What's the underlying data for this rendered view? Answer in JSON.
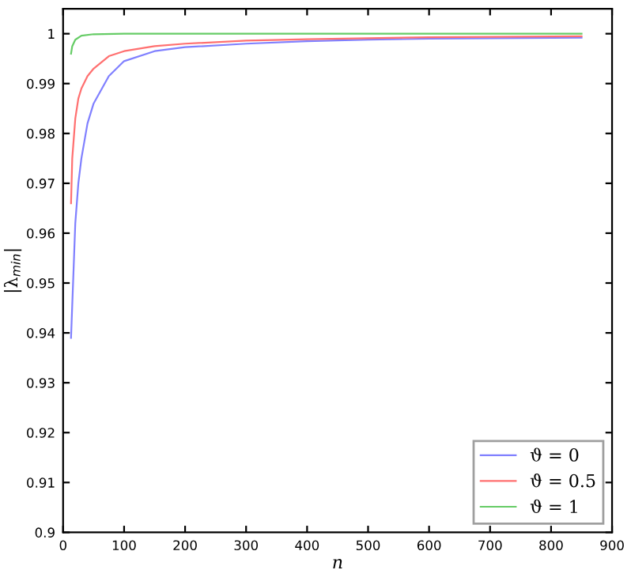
{
  "chart_data": {
    "type": "line",
    "xlabel": "n",
    "ylabel": "|λ$_{min}$|",
    "xlim": [
      0,
      900
    ],
    "xticks": [
      0,
      100,
      200,
      300,
      400,
      500,
      600,
      700,
      800,
      900
    ],
    "ylim": [
      0.9,
      1.005
    ],
    "yticks": [
      0.9,
      0.91,
      0.92,
      0.93,
      0.94,
      0.95,
      0.96,
      0.97,
      0.98,
      0.99,
      1
    ],
    "grid": false,
    "legend": "bottom right",
    "marker": "none",
    "line_style": "solid",
    "series": [
      {
        "name": "ϑ = 0",
        "color": "#8080ff",
        "x": [
          13,
          20,
          25,
          30,
          40,
          50,
          75,
          100,
          150,
          200,
          300,
          400,
          500,
          600,
          700,
          850
        ],
        "values": [
          0.939,
          0.962,
          0.97,
          0.975,
          0.982,
          0.986,
          0.9915,
          0.9945,
          0.9965,
          0.9973,
          0.998,
          0.9985,
          0.9988,
          0.999,
          0.9991,
          0.9992
        ]
      },
      {
        "name": "ϑ = 0.5",
        "color": "#ff7070",
        "x": [
          13,
          15,
          20,
          25,
          30,
          40,
          50,
          75,
          100,
          150,
          200,
          300,
          400,
          600,
          850
        ],
        "values": [
          0.966,
          0.975,
          0.983,
          0.987,
          0.989,
          0.9915,
          0.993,
          0.9955,
          0.9965,
          0.9975,
          0.998,
          0.9986,
          0.9989,
          0.9993,
          0.9995
        ]
      },
      {
        "name": "ϑ = 1",
        "color": "#66cc66",
        "x": [
          13,
          15,
          20,
          30,
          50,
          100,
          850
        ],
        "values": [
          0.996,
          0.9975,
          0.9988,
          0.9996,
          0.9999,
          1.0,
          1.0
        ]
      }
    ]
  }
}
